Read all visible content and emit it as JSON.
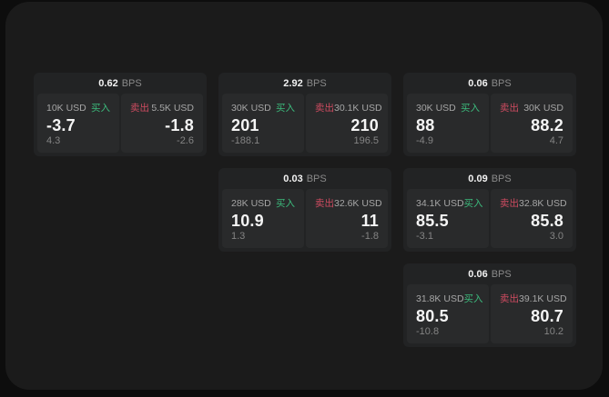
{
  "colors": {
    "buy": "#3cba7c",
    "sell": "#cd4b60"
  },
  "labels": {
    "buy": "买入",
    "sell": "卖出",
    "bps_unit": "BPS"
  },
  "cards": [
    {
      "row": 1,
      "col": 1,
      "bps": "0.62",
      "buy": {
        "size": "10K USD",
        "value": "-3.7",
        "delta": "4.3"
      },
      "sell": {
        "size": "5.5K USD",
        "value": "-1.8",
        "delta": "-2.6"
      }
    },
    {
      "row": 1,
      "col": 2,
      "bps": "2.92",
      "buy": {
        "size": "30K USD",
        "value": "201",
        "delta": "-188.1"
      },
      "sell": {
        "size": "30.1K USD",
        "value": "210",
        "delta": "196.5"
      }
    },
    {
      "row": 1,
      "col": 3,
      "bps": "0.06",
      "buy": {
        "size": "30K USD",
        "value": "88",
        "delta": "-4.9"
      },
      "sell": {
        "size": "30K USD",
        "value": "88.2",
        "delta": "4.7"
      }
    },
    {
      "row": 2,
      "col": 2,
      "bps": "0.03",
      "buy": {
        "size": "28K USD",
        "value": "10.9",
        "delta": "1.3"
      },
      "sell": {
        "size": "32.6K USD",
        "value": "11",
        "delta": "-1.8"
      }
    },
    {
      "row": 2,
      "col": 3,
      "bps": "0.09",
      "buy": {
        "size": "34.1K USD",
        "value": "85.5",
        "delta": "-3.1"
      },
      "sell": {
        "size": "32.8K USD",
        "value": "85.8",
        "delta": "3.0"
      }
    },
    {
      "row": 3,
      "col": 3,
      "bps": "0.06",
      "buy": {
        "size": "31.8K USD",
        "value": "80.5",
        "delta": "-10.8"
      },
      "sell": {
        "size": "39.1K USD",
        "value": "80.7",
        "delta": "10.2"
      }
    }
  ]
}
